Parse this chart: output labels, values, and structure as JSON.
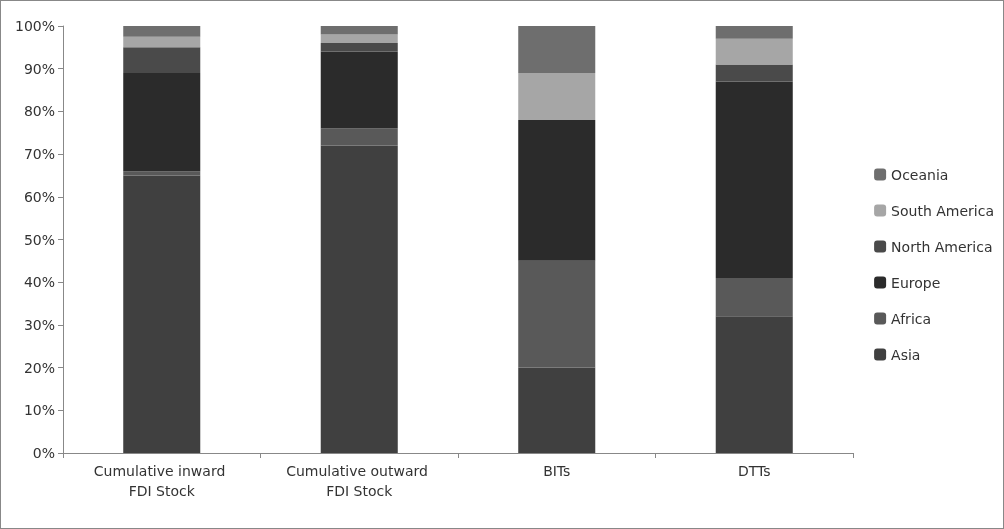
{
  "chart_data": {
    "type": "bar",
    "stacked": true,
    "categories": [
      "Cumulative inward FDI Stock",
      "Cumulative outward FDI Stock",
      "BITs",
      "DTTs"
    ],
    "series": [
      {
        "name": "Asia",
        "color": "#404040",
        "values": [
          65,
          72,
          20,
          32
        ]
      },
      {
        "name": "Africa",
        "color": "#595959",
        "values": [
          1,
          4,
          25,
          9
        ]
      },
      {
        "name": "Europe",
        "color": "#2b2b2b",
        "values": [
          23,
          18,
          33,
          46
        ]
      },
      {
        "name": "North America",
        "color": "#4a4a4a",
        "values": [
          6,
          2,
          0,
          4
        ]
      },
      {
        "name": "South America",
        "color": "#a6a6a6",
        "values": [
          2.5,
          2,
          11,
          6
        ]
      },
      {
        "name": "Oceania",
        "color": "#6e6e6e",
        "values": [
          2.5,
          2,
          11,
          3
        ]
      }
    ],
    "ylim": [
      0,
      100
    ],
    "yticks": [
      {
        "value": 0,
        "label": "0%"
      },
      {
        "value": 10,
        "label": "10%"
      },
      {
        "value": 20,
        "label": "20%"
      },
      {
        "value": 30,
        "label": "30%"
      },
      {
        "value": 40,
        "label": "40%"
      },
      {
        "value": 50,
        "label": "50%"
      },
      {
        "value": 60,
        "label": "60%"
      },
      {
        "value": 70,
        "label": "70%"
      },
      {
        "value": 80,
        "label": "80%"
      },
      {
        "value": 90,
        "label": "90%"
      },
      {
        "value": 100,
        "label": "100%"
      }
    ],
    "grid": false,
    "legend": "right"
  }
}
